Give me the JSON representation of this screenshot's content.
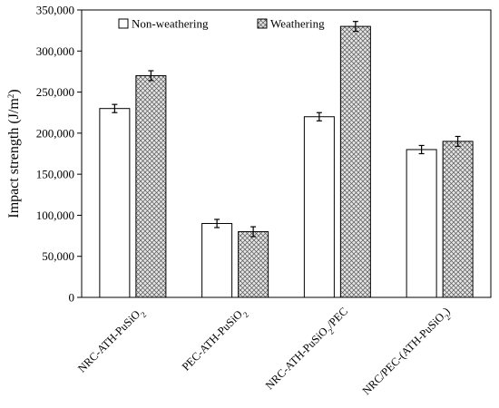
{
  "chart_data": {
    "type": "bar",
    "categories": [
      "NRC-ATH-PuSiO2",
      "PEC-ATH-PuSiO2",
      "NRC-ATH-PuSiO2/PEC",
      "NRC/PEC-(ATH-PuSiO2)"
    ],
    "series": [
      {
        "name": "Non-weathering",
        "values": [
          230000,
          90000,
          220000,
          180000
        ],
        "errors": [
          5000,
          5000,
          5000,
          5000
        ],
        "pattern": "solid",
        "fill": "#ffffff"
      },
      {
        "name": "Weathering",
        "values": [
          270000,
          80000,
          330000,
          190000
        ],
        "errors": [
          6000,
          6000,
          6000,
          6000
        ],
        "pattern": "crosshatch",
        "fill": "#d9d9d9"
      }
    ],
    "title": "",
    "xlabel": "",
    "ylabel": "Impact strength (J/m2)",
    "ylim": [
      0,
      350000
    ],
    "yticks": [
      0,
      50000,
      100000,
      150000,
      200000,
      250000,
      300000,
      350000
    ],
    "ytick_labels": [
      "0",
      "50,000",
      "100,000",
      "150,000",
      "200,000",
      "250,000",
      "300,000",
      "350,000"
    ],
    "grid": false,
    "legend_position": "top-left"
  }
}
